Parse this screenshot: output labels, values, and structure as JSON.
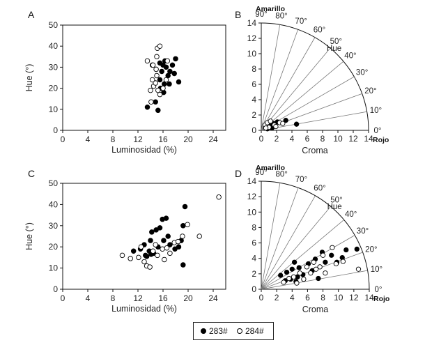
{
  "legend": {
    "items": [
      {
        "label": "283#",
        "filled": true
      },
      {
        "label": "284#",
        "filled": false
      }
    ]
  },
  "chart_data": [
    {
      "panel": "A",
      "type": "scatter",
      "xlabel": "Luminosidad (%)",
      "ylabel": "Hue (°)",
      "xlim": [
        0,
        26
      ],
      "ylim": [
        0,
        50
      ],
      "xticks": [
        "0",
        "4",
        "8",
        "12",
        "16",
        "20",
        "24"
      ],
      "yticks": [
        "0",
        "10",
        "20",
        "30",
        "40",
        "50"
      ],
      "series": [
        {
          "name": "283#",
          "filled": true,
          "points": [
            [
              13.5,
              11
            ],
            [
              14.8,
              13.5
            ],
            [
              15.2,
              9.5
            ],
            [
              15.5,
              24
            ],
            [
              15.8,
              28
            ],
            [
              16,
              31
            ],
            [
              16.3,
              33
            ],
            [
              16.5,
              30
            ],
            [
              16.8,
              26
            ],
            [
              17.1,
              28
            ],
            [
              16.2,
              22
            ],
            [
              15.6,
              20
            ],
            [
              14.3,
              31
            ],
            [
              16.1,
              18
            ],
            [
              17.5,
              31
            ],
            [
              17.8,
              27
            ],
            [
              18,
              34
            ],
            [
              18.5,
              23
            ],
            [
              15.5,
              32
            ],
            [
              17,
              22
            ]
          ]
        },
        {
          "name": "284#",
          "filled": false,
          "points": [
            [
              13.5,
              33
            ],
            [
              14.4,
              31
            ],
            [
              15.1,
              39
            ],
            [
              15.5,
              40
            ],
            [
              14.9,
              29
            ],
            [
              14.5,
              21
            ],
            [
              14,
              19
            ],
            [
              14.8,
              22.5
            ],
            [
              15.2,
              19
            ],
            [
              15.5,
              17
            ],
            [
              16,
              20
            ],
            [
              16.5,
              24
            ],
            [
              15,
              26
            ],
            [
              14.3,
              24
            ],
            [
              14.1,
              13.5
            ],
            [
              15,
              35
            ],
            [
              16.7,
              33
            ]
          ]
        }
      ]
    },
    {
      "panel": "B",
      "type": "scatter",
      "subtype": "polar-quadrant",
      "top_label": "Amarillo",
      "right_label": "Rojo",
      "angle_title": "Hue",
      "xlabel": "Croma",
      "rlim": [
        0,
        14
      ],
      "ticks": [
        "0",
        "2",
        "4",
        "6",
        "8",
        "10",
        "12",
        "14"
      ],
      "angle_labels": [
        "0°",
        "10°",
        "20°",
        "30°",
        "40°",
        "50°",
        "60°",
        "70°",
        "80°",
        "90°"
      ],
      "series": [
        {
          "name": "283#",
          "filled": true,
          "points": [
            [
              0.6,
              0.4
            ],
            [
              0.9,
              0.5
            ],
            [
              1.2,
              0.6
            ],
            [
              1.6,
              0.9
            ],
            [
              2.1,
              1.1
            ],
            [
              3.2,
              1.3
            ],
            [
              4.6,
              0.8
            ],
            [
              1.4,
              0.3
            ],
            [
              0.8,
              0.2
            ],
            [
              1.0,
              0.8
            ]
          ]
        },
        {
          "name": "284#",
          "filled": false,
          "points": [
            [
              0.5,
              0.7
            ],
            [
              0.8,
              1.0
            ],
            [
              1.2,
              1.2
            ],
            [
              1.7,
              0.7
            ],
            [
              2.4,
              1.0
            ],
            [
              1.0,
              0.4
            ],
            [
              0.6,
              0.3
            ],
            [
              1.9,
              0.5
            ],
            [
              2.8,
              0.9
            ]
          ]
        }
      ]
    },
    {
      "panel": "C",
      "type": "scatter",
      "xlabel": "Luminosidad (%)",
      "ylabel": "Hue (°)",
      "xlim": [
        0,
        26
      ],
      "ylim": [
        0,
        50
      ],
      "xticks": [
        "0",
        "4",
        "8",
        "12",
        "16",
        "20",
        "24"
      ],
      "yticks": [
        "0",
        "10",
        "20",
        "30",
        "40",
        "50"
      ],
      "series": [
        {
          "name": "283#",
          "filled": true,
          "points": [
            [
              11.3,
              18
            ],
            [
              12.4,
              19
            ],
            [
              13,
              21
            ],
            [
              13.4,
              15.5
            ],
            [
              13.8,
              18
            ],
            [
              14,
              23
            ],
            [
              14.2,
              27
            ],
            [
              14.5,
              17
            ],
            [
              14.9,
              28
            ],
            [
              15.2,
              20
            ],
            [
              15.5,
              29
            ],
            [
              15.9,
              33
            ],
            [
              16.1,
              23
            ],
            [
              16.5,
              33.5
            ],
            [
              16.8,
              25
            ],
            [
              17.1,
              21
            ],
            [
              17.9,
              19
            ],
            [
              18.5,
              20
            ],
            [
              18.9,
              23
            ],
            [
              19.2,
              30
            ],
            [
              19.5,
              39
            ],
            [
              19.2,
              11.5
            ],
            [
              13.2,
              16
            ],
            [
              14.1,
              16.5
            ]
          ]
        },
        {
          "name": "284#",
          "filled": false,
          "points": [
            [
              9.5,
              16
            ],
            [
              10.8,
              14.5
            ],
            [
              12.1,
              15
            ],
            [
              12.5,
              20
            ],
            [
              13,
              13
            ],
            [
              13.4,
              11
            ],
            [
              13.9,
              10.5
            ],
            [
              14.4,
              18
            ],
            [
              15.1,
              16
            ],
            [
              15.9,
              19
            ],
            [
              16.2,
              14
            ],
            [
              17.1,
              17
            ],
            [
              17.8,
              22
            ],
            [
              18.4,
              22.5
            ],
            [
              19.1,
              25
            ],
            [
              19.9,
              30.5
            ],
            [
              21.8,
              25
            ],
            [
              24.9,
              43.5
            ],
            [
              16.6,
              19.5
            ],
            [
              14.8,
              21
            ]
          ]
        }
      ]
    },
    {
      "panel": "D",
      "type": "scatter",
      "subtype": "polar-quadrant",
      "top_label": "Amarillo",
      "right_label": "Rojo",
      "angle_title": "Hue",
      "xlabel": "Croma",
      "rlim": [
        0,
        14
      ],
      "ticks": [
        "0",
        "2",
        "4",
        "6",
        "8",
        "10",
        "12",
        "14"
      ],
      "angle_labels": [
        "0°",
        "10°",
        "20°",
        "30°",
        "40°",
        "50°",
        "60°",
        "70°",
        "80°",
        "90°"
      ],
      "series": [
        {
          "name": "283#",
          "filled": true,
          "points": [
            [
              2.5,
              1.8
            ],
            [
              3.3,
              2.2
            ],
            [
              3.8,
              1.3
            ],
            [
              4.0,
              2.6
            ],
            [
              4.3,
              3.5
            ],
            [
              4.5,
              1.0
            ],
            [
              4.9,
              2.8
            ],
            [
              5.4,
              1.9
            ],
            [
              6.1,
              3.3
            ],
            [
              6.6,
              2.4
            ],
            [
              7.0,
              3.9
            ],
            [
              7.4,
              1.4
            ],
            [
              7.9,
              4.8
            ],
            [
              8.3,
              3.5
            ],
            [
              9.1,
              4.4
            ],
            [
              9.8,
              3.5
            ],
            [
              10.5,
              4.1
            ],
            [
              11.0,
              5.1
            ],
            [
              12.4,
              5.2
            ],
            [
              4.7,
              1.6
            ],
            [
              3.1,
              1.1
            ]
          ]
        },
        {
          "name": "284#",
          "filled": false,
          "points": [
            [
              2.9,
              0.9
            ],
            [
              3.6,
              1.4
            ],
            [
              4.2,
              1.6
            ],
            [
              5.0,
              2.1
            ],
            [
              5.9,
              2.9
            ],
            [
              6.4,
              2.1
            ],
            [
              7.1,
              2.6
            ],
            [
              7.6,
              2.9
            ],
            [
              8.3,
              2.1
            ],
            [
              9.2,
              5.4
            ],
            [
              9.7,
              3.3
            ],
            [
              10.6,
              3.6
            ],
            [
              12.6,
              2.6
            ],
            [
              4.6,
              0.8
            ],
            [
              6.8,
              3.5
            ],
            [
              8.0,
              4.4
            ],
            [
              5.5,
              1.3
            ]
          ]
        }
      ]
    }
  ]
}
